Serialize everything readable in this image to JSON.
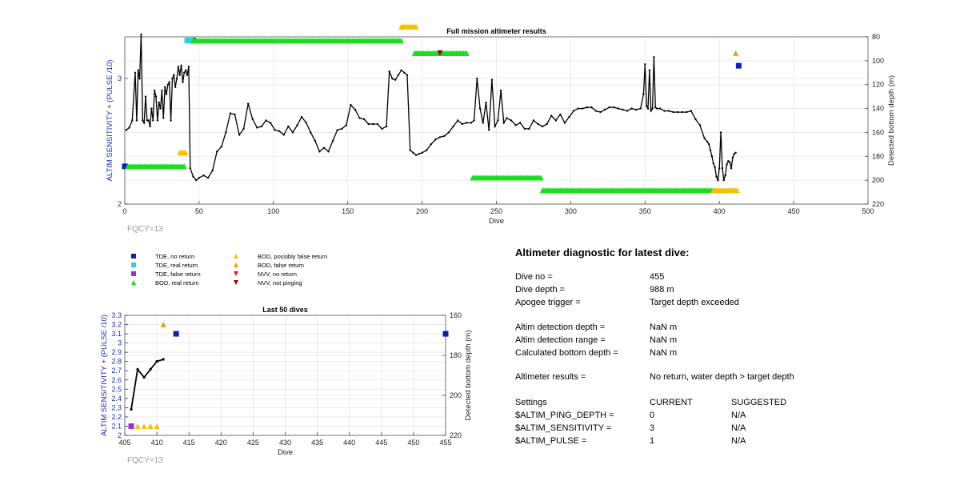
{
  "chart_data": [
    {
      "id": "main",
      "type": "line",
      "title": "Full mission altimeter results",
      "xlabel": "Dive",
      "ylabel": "ALTIM SENSITIVITY + (PULSE /10)",
      "y2label": "Detected bottom depth (m)",
      "xlim": [
        0,
        500
      ],
      "ylim": [
        2,
        3.33
      ],
      "y2lim": [
        80,
        220
      ],
      "y2_reversed": true,
      "xticks": [
        0,
        50,
        100,
        150,
        200,
        250,
        300,
        350,
        400,
        450,
        500
      ],
      "yticks": [
        2,
        3
      ],
      "y2ticks": [
        80,
        100,
        120,
        140,
        160,
        180,
        200,
        220
      ],
      "grid": true,
      "annotation": "FQCY=13",
      "depth_series": {
        "name": "Detected bottom depth",
        "x": [
          1,
          3,
          5,
          7,
          8,
          9,
          10,
          11,
          12,
          13,
          14,
          15,
          16,
          17,
          18,
          19,
          20,
          21,
          22,
          23,
          24,
          25,
          26,
          27,
          28,
          29,
          30,
          31,
          32,
          33,
          34,
          35,
          36,
          37,
          38,
          39,
          40,
          41,
          42,
          43,
          44,
          46,
          48,
          50,
          53,
          56,
          59,
          62,
          65,
          68,
          71,
          74,
          77,
          80,
          83,
          86,
          89,
          92,
          95,
          98,
          101,
          104,
          107,
          110,
          113,
          116,
          119,
          122,
          125,
          128,
          131,
          134,
          137,
          140,
          143,
          146,
          149,
          152,
          155,
          158,
          161,
          164,
          167,
          170,
          173,
          176,
          178,
          180,
          182,
          184,
          186,
          188,
          190,
          192,
          194,
          196,
          198,
          200,
          203,
          206,
          209,
          212,
          215,
          218,
          221,
          224,
          227,
          230,
          233,
          235,
          237,
          239,
          241,
          243,
          245,
          247,
          249,
          251,
          253,
          255,
          257,
          260,
          263,
          266,
          269,
          272,
          275,
          278,
          281,
          284,
          287,
          290,
          293,
          296,
          299,
          302,
          305,
          308,
          311,
          314,
          317,
          320,
          323,
          326,
          329,
          332,
          335,
          338,
          341,
          344,
          347,
          349,
          350,
          351,
          352,
          353,
          354,
          355,
          356,
          357,
          358,
          360,
          363,
          366,
          369,
          372,
          375,
          378,
          381,
          384,
          387,
          390,
          392,
          393,
          394,
          395,
          396,
          397,
          398,
          399,
          400,
          401,
          402,
          403,
          404,
          405,
          406,
          407,
          408,
          409,
          410,
          411
        ],
        "y": [
          158,
          156,
          150,
          110,
          150,
          108,
          115,
          78,
          150,
          152,
          130,
          150,
          150,
          155,
          140,
          150,
          125,
          130,
          150,
          135,
          140,
          125,
          148,
          122,
          128,
          120,
          118,
          150,
          115,
          112,
          122,
          115,
          105,
          112,
          104,
          118,
          110,
          108,
          112,
          105,
          190,
          197,
          200,
          198,
          196,
          198,
          192,
          176,
          172,
          160,
          144,
          145,
          162,
          157,
          136,
          149,
          156,
          155,
          150,
          152,
          158,
          159,
          162,
          155,
          160,
          154,
          147,
          152,
          160,
          167,
          176,
          173,
          176,
          167,
          158,
          157,
          154,
          137,
          141,
          148,
          149,
          153,
          153,
          153,
          157,
          155,
          109,
          115,
          116,
          112,
          108,
          110,
          112,
          175,
          177,
          179,
          178,
          177,
          175,
          170,
          166,
          164,
          163,
          160,
          155,
          150,
          153,
          152,
          152,
          150,
          115,
          140,
          152,
          135,
          158,
          116,
          155,
          150,
          125,
          152,
          148,
          150,
          154,
          152,
          157,
          157,
          150,
          153,
          155,
          153,
          146,
          150,
          145,
          152,
          147,
          142,
          140,
          140,
          139,
          139,
          142,
          143,
          141,
          139,
          139,
          140,
          141,
          142,
          140,
          141,
          140,
          128,
          103,
          138,
          140,
          108,
          142,
          140,
          97,
          139,
          140,
          140,
          142,
          142,
          143,
          143,
          143,
          143,
          142,
          149,
          154,
          165,
          168,
          170,
          175,
          180,
          186,
          189,
          197,
          200,
          190,
          160,
          190,
          200,
          196,
          187,
          184,
          185,
          190,
          181,
          178,
          177
        ]
      },
      "marker_rows": [
        {
          "name": "TDE, no return",
          "type": "square",
          "color": "#0b1fb2",
          "x": [
            0,
            46,
            413
          ],
          "y": [
            2.3,
            3.3,
            3.1
          ]
        },
        {
          "name": "TDE, real return",
          "type": "square",
          "color": "#1bd6e0",
          "x": [
            42,
            44
          ],
          "y": [
            3.3,
            3.3
          ]
        },
        {
          "name": "BOD, real return",
          "type": "triangle-up",
          "color": "#1ddc22",
          "segments": [
            [
              2,
              40,
              2.3
            ],
            [
              46,
              186,
              3.3
            ],
            [
              195,
              230,
              3.2
            ],
            [
              234,
              280,
              2.21
            ],
            [
              281,
              397,
              2.11
            ]
          ]
        },
        {
          "name": "BOD, possibly false return",
          "type": "triangle-up",
          "color": "#f4c10a",
          "segments": [
            [
              37,
              41,
              2.41
            ],
            [
              186,
              196,
              3.41
            ],
            [
              396,
              412,
              2.11
            ]
          ]
        },
        {
          "name": "BOD, false return",
          "type": "triangle-up",
          "color": "#ef9b12",
          "x": [
            411
          ],
          "y": [
            3.2
          ]
        },
        {
          "name": "NVV, not pinging",
          "type": "triangle-down",
          "color": "#8b0a0a",
          "x": [
            212
          ],
          "y": [
            3.2
          ]
        }
      ]
    },
    {
      "id": "last50",
      "type": "line",
      "title": "Last 50 dives",
      "xlabel": "Dive",
      "ylabel": "ALTIM SENSITIVITY + (PULSE /10)",
      "y2label": "Detected bottom depth (m)",
      "xlim": [
        405,
        455
      ],
      "ylim": [
        2,
        3.3
      ],
      "y2lim": [
        160,
        220
      ],
      "y2_reversed": true,
      "xticks": [
        405,
        410,
        415,
        420,
        425,
        430,
        435,
        440,
        445,
        450,
        455
      ],
      "yticks": [
        2,
        2.1,
        2.2,
        2.3,
        2.4,
        2.5,
        2.6,
        2.7,
        2.8,
        2.9,
        3,
        3.1,
        3.2,
        3.3
      ],
      "y2ticks": [
        160,
        180,
        200,
        220
      ],
      "grid": true,
      "annotation": "FQCY=13",
      "depth_series": {
        "name": "Detected bottom depth",
        "x": [
          406,
          407,
          408,
          409,
          410,
          411
        ],
        "y": [
          207,
          187,
          191,
          187,
          183,
          182
        ]
      },
      "marker_rows": [
        {
          "name": "TDE, no return",
          "type": "square",
          "color": "#0b1fb2",
          "x": [
            413,
            455
          ],
          "y": [
            3.1,
            3.1
          ]
        },
        {
          "name": "TDE, false return",
          "type": "square",
          "color": "#9a2fd6",
          "x": [
            406
          ],
          "y": [
            2.1
          ]
        },
        {
          "name": "BOD, possibly false return",
          "type": "triangle-up",
          "color": "#f4c10a",
          "x": [
            407,
            408,
            409,
            410
          ],
          "y": [
            2.1,
            2.1,
            2.1,
            2.1
          ]
        },
        {
          "name": "BOD, false return",
          "type": "triangle-up",
          "color": "#ef9b12",
          "x": [
            411
          ],
          "y": [
            3.2
          ]
        }
      ]
    }
  ],
  "legend": [
    {
      "label": "TDE, no return",
      "shape": "square",
      "color": "#0b1fb2"
    },
    {
      "label": "TDE, real return",
      "shape": "square",
      "color": "#1bd6e0"
    },
    {
      "label": "TDE, false return",
      "shape": "square",
      "color": "#9a2fd6"
    },
    {
      "label": "BOD, real return",
      "shape": "triangle-up",
      "color": "#1ddc22"
    },
    {
      "label": "BOD, possibly false return",
      "shape": "triangle-up",
      "color": "#f4c10a"
    },
    {
      "label": "BOD, false return",
      "shape": "triangle-up",
      "color": "#ef9b12"
    },
    {
      "label": "NVV, no return",
      "shape": "triangle-down",
      "color": "#d42317"
    },
    {
      "label": "NVV, not pinging",
      "shape": "triangle-down",
      "color": "#8b0a0a"
    }
  ],
  "diagnostic": {
    "title": "Altimeter diagnostic for latest dive:",
    "dive_no_label": "Dive no =",
    "dive_no": "455",
    "dive_depth_label": "Dive depth =",
    "dive_depth": "988 m",
    "apogee_label": "Apogee trigger =",
    "apogee": "Target depth exceeded",
    "detection_depth_label": "Altim detection depth =",
    "detection_depth": "NaN m",
    "detection_range_label": "Altim detection range =",
    "detection_range": "NaN m",
    "bottom_depth_label": "Calculated bottom depth =",
    "bottom_depth": "NaN m",
    "results_label": "Altimeter results =",
    "results": "No return, water depth > target depth",
    "settings": {
      "header": [
        "Settings",
        "CURRENT",
        "SUGGESTED"
      ],
      "rows": [
        [
          "$ALTIM_PING_DEPTH =",
          "0",
          "N/A"
        ],
        [
          "$ALTIM_SENSITIVITY =",
          "3",
          "N/A"
        ],
        [
          "$ALTIM_PULSE =",
          "1",
          "N/A"
        ]
      ]
    }
  }
}
